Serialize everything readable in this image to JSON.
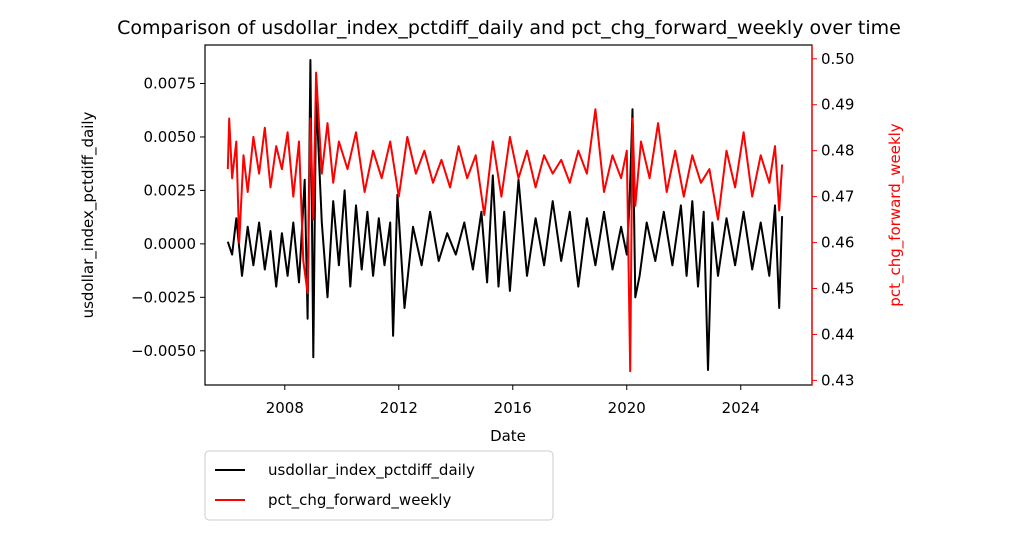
{
  "chart_data": {
    "type": "line",
    "title": "Comparison of usdollar_index_pctdiff_daily and pct_chg_forward_weekly over time",
    "xlabel": "Date",
    "x_tick_labels": [
      "2008",
      "2012",
      "2016",
      "2020",
      "2024"
    ],
    "x_ticks": [
      2008,
      2012,
      2016,
      2020,
      2024
    ],
    "xlim": [
      2005.2,
      2026.5
    ],
    "grid": false,
    "legend_position": "below-left",
    "y_left": {
      "label": "usdollar_index_pctdiff_daily",
      "color": "#000000",
      "ylim": [
        -0.0066,
        0.0093
      ],
      "ticks": [
        -0.005,
        -0.0025,
        0.0,
        0.0025,
        0.005,
        0.0075
      ],
      "tick_labels": [
        "−0.0050",
        "−0.0025",
        "0.0000",
        "0.0025",
        "0.0050",
        "0.0075"
      ]
    },
    "y_right": {
      "label": "pct_chg_forward_weekly",
      "color": "#ff0000",
      "ylim": [
        0.429,
        0.503
      ],
      "ticks": [
        0.43,
        0.44,
        0.45,
        0.46,
        0.47,
        0.48,
        0.49,
        0.5
      ],
      "tick_labels": [
        "0.43",
        "0.44",
        "0.45",
        "0.46",
        "0.47",
        "0.48",
        "0.49",
        "0.50"
      ]
    },
    "series": [
      {
        "name": "usdollar_index_pctdiff_daily",
        "axis": "left",
        "color": "#000000",
        "x": [
          2006.0,
          2006.15,
          2006.3,
          2006.5,
          2006.7,
          2006.9,
          2007.1,
          2007.3,
          2007.5,
          2007.7,
          2007.9,
          2008.1,
          2008.3,
          2008.5,
          2008.7,
          2008.8,
          2008.9,
          2009.0,
          2009.1,
          2009.3,
          2009.5,
          2009.7,
          2009.9,
          2010.1,
          2010.3,
          2010.5,
          2010.7,
          2010.9,
          2011.1,
          2011.3,
          2011.5,
          2011.7,
          2011.8,
          2011.95,
          2012.2,
          2012.5,
          2012.8,
          2013.1,
          2013.4,
          2013.7,
          2014.0,
          2014.3,
          2014.6,
          2014.9,
          2015.1,
          2015.3,
          2015.5,
          2015.7,
          2015.9,
          2016.2,
          2016.5,
          2016.8,
          2017.1,
          2017.4,
          2017.7,
          2018.0,
          2018.3,
          2018.6,
          2018.9,
          2019.2,
          2019.5,
          2019.8,
          2020.0,
          2020.1,
          2020.2,
          2020.3,
          2020.45,
          2020.7,
          2021.0,
          2021.3,
          2021.6,
          2021.9,
          2022.1,
          2022.3,
          2022.5,
          2022.7,
          2022.85,
          2023.0,
          2023.2,
          2023.5,
          2023.8,
          2024.1,
          2024.4,
          2024.7,
          2025.0,
          2025.2,
          2025.35,
          2025.45
        ],
        "values": [
          0.0001,
          -0.0005,
          0.0012,
          -0.0015,
          0.0008,
          -0.001,
          0.001,
          -0.0012,
          0.0006,
          -0.002,
          0.0005,
          -0.0015,
          0.001,
          -0.0018,
          0.003,
          -0.0035,
          0.0086,
          -0.0053,
          0.007,
          0.001,
          -0.0025,
          0.002,
          -0.001,
          0.0025,
          -0.002,
          0.0018,
          -0.0012,
          0.0015,
          -0.0015,
          0.0012,
          -0.001,
          0.001,
          -0.0043,
          0.0023,
          -0.003,
          0.0008,
          -0.001,
          0.0015,
          -0.0008,
          0.0005,
          -0.0005,
          0.001,
          -0.0012,
          0.0015,
          -0.0018,
          0.0032,
          -0.002,
          0.0015,
          -0.0022,
          0.003,
          -0.0015,
          0.0012,
          -0.001,
          0.002,
          -0.0008,
          0.0015,
          -0.002,
          0.0012,
          -0.001,
          0.0015,
          -0.0012,
          0.0008,
          -0.0005,
          0.002,
          0.0063,
          -0.0025,
          -0.0015,
          0.001,
          -0.0008,
          0.0015,
          -0.001,
          0.0018,
          -0.0015,
          0.002,
          -0.002,
          0.0015,
          -0.0059,
          0.001,
          -0.0015,
          0.0012,
          -0.001,
          0.0015,
          -0.0012,
          0.001,
          -0.0015,
          0.0018,
          -0.003,
          0.0013
        ]
      },
      {
        "name": "pct_chg_forward_weekly",
        "axis": "right",
        "color": "#ff0000",
        "x": [
          2006.0,
          2006.05,
          2006.15,
          2006.3,
          2006.4,
          2006.55,
          2006.7,
          2006.9,
          2007.1,
          2007.3,
          2007.5,
          2007.7,
          2007.9,
          2008.1,
          2008.3,
          2008.5,
          2008.65,
          2008.8,
          2008.9,
          2009.0,
          2009.1,
          2009.3,
          2009.5,
          2009.7,
          2009.9,
          2010.2,
          2010.5,
          2010.8,
          2011.1,
          2011.4,
          2011.7,
          2012.0,
          2012.3,
          2012.6,
          2012.9,
          2013.2,
          2013.5,
          2013.8,
          2014.1,
          2014.4,
          2014.7,
          2015.0,
          2015.3,
          2015.6,
          2015.9,
          2016.2,
          2016.5,
          2016.8,
          2017.1,
          2017.4,
          2017.7,
          2018.0,
          2018.3,
          2018.6,
          2018.9,
          2019.2,
          2019.5,
          2019.8,
          2020.0,
          2020.12,
          2020.2,
          2020.3,
          2020.5,
          2020.8,
          2021.1,
          2021.4,
          2021.7,
          2022.0,
          2022.3,
          2022.6,
          2022.9,
          2023.2,
          2023.5,
          2023.8,
          2024.1,
          2024.4,
          2024.7,
          2025.0,
          2025.2,
          2025.35,
          2025.45
        ],
        "values": [
          0.476,
          0.487,
          0.474,
          0.482,
          0.46,
          0.479,
          0.471,
          0.483,
          0.475,
          0.485,
          0.472,
          0.481,
          0.476,
          0.484,
          0.47,
          0.482,
          0.456,
          0.449,
          0.487,
          0.465,
          0.497,
          0.475,
          0.486,
          0.473,
          0.482,
          0.476,
          0.484,
          0.471,
          0.48,
          0.474,
          0.482,
          0.47,
          0.483,
          0.475,
          0.48,
          0.473,
          0.478,
          0.472,
          0.481,
          0.474,
          0.479,
          0.466,
          0.482,
          0.47,
          0.483,
          0.474,
          0.48,
          0.472,
          0.479,
          0.475,
          0.478,
          0.473,
          0.48,
          0.475,
          0.489,
          0.471,
          0.479,
          0.474,
          0.48,
          0.432,
          0.487,
          0.468,
          0.482,
          0.474,
          0.486,
          0.471,
          0.48,
          0.47,
          0.479,
          0.473,
          0.476,
          0.465,
          0.48,
          0.472,
          0.484,
          0.47,
          0.479,
          0.473,
          0.481,
          0.467,
          0.477
        ]
      }
    ]
  }
}
